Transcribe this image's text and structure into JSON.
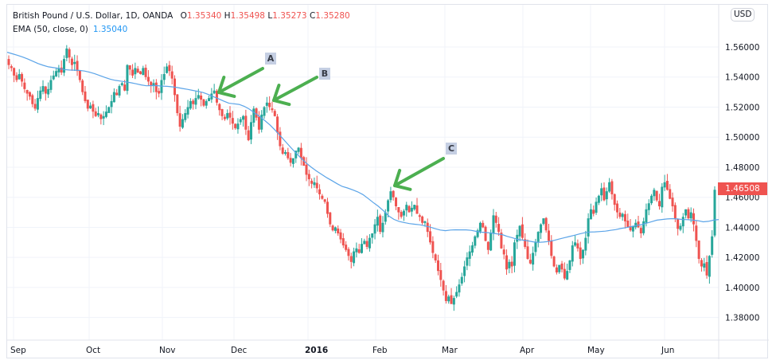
{
  "header": {
    "symbol": "British Pound / U.S. Dollar, 1D, OANDA",
    "open_label": "O",
    "open": "1.35340",
    "high_label": "H",
    "high": "1.35498",
    "low_label": "L",
    "low": "1.35273",
    "close_label": "C",
    "close": "1.35280",
    "indicator": "EMA (50, close, 0)",
    "indicator_value": "1.35040"
  },
  "price_axis": {
    "currency_badge": "USD",
    "ticks": [
      "1.56000",
      "1.54000",
      "1.52000",
      "1.50000",
      "1.48000",
      "1.46000",
      "1.44000",
      "1.42000",
      "1.40000",
      "1.38000"
    ],
    "last_price": "1.46508"
  },
  "time_axis": {
    "labels": [
      "Sep",
      "Oct",
      "Nov",
      "Dec",
      "2016",
      "Feb",
      "Mar",
      "Apr",
      "May",
      "Jun"
    ]
  },
  "annotations": [
    {
      "label": "A"
    },
    {
      "label": "B"
    },
    {
      "label": "C"
    }
  ],
  "colors": {
    "up": "#26a69a",
    "down": "#ef5350",
    "ema": "#5ba4e8",
    "arrow": "#4caf50",
    "grid": "#f0f3fa",
    "label_bg": "#c5cfe3"
  },
  "chart_data": {
    "type": "candlestick",
    "title": "British Pound / U.S. Dollar, 1D, OANDA",
    "xlabel": "",
    "ylabel": "USD",
    "ylim": [
      1.37,
      1.575
    ],
    "yticks": [
      1.56,
      1.54,
      1.52,
      1.5,
      1.48,
      1.46,
      1.44,
      1.42,
      1.4,
      1.38
    ],
    "xticks": [
      "Sep",
      "Oct",
      "Nov",
      "Dec",
      "2016",
      "Feb",
      "Mar",
      "Apr",
      "May",
      "Jun"
    ],
    "grid": true,
    "last_price": 1.46508,
    "path_closes": [
      1.548,
      1.546,
      1.541,
      1.538,
      1.542,
      1.537,
      1.532,
      1.529,
      1.527,
      1.522,
      1.519,
      1.526,
      1.531,
      1.534,
      1.529,
      1.532,
      1.538,
      1.541,
      1.544,
      1.546,
      1.543,
      1.552,
      1.559,
      1.553,
      1.548,
      1.55,
      1.544,
      1.538,
      1.53,
      1.524,
      1.519,
      1.521,
      1.517,
      1.514,
      1.516,
      1.512,
      1.514,
      1.517,
      1.52,
      1.524,
      1.53,
      1.528,
      1.534,
      1.536,
      1.531,
      1.548,
      1.545,
      1.541,
      1.546,
      1.543,
      1.542,
      1.546,
      1.54,
      1.537,
      1.534,
      1.536,
      1.53,
      1.529,
      1.538,
      1.542,
      1.547,
      1.544,
      1.539,
      1.528,
      1.516,
      1.507,
      1.512,
      1.516,
      1.52,
      1.524,
      1.522,
      1.526,
      1.528,
      1.525,
      1.521,
      1.524,
      1.526,
      1.529,
      1.531,
      1.523,
      1.518,
      1.514,
      1.512,
      1.516,
      1.513,
      1.509,
      1.506,
      1.509,
      1.512,
      1.514,
      1.505,
      1.498,
      1.51,
      1.519,
      1.513,
      1.505,
      1.515,
      1.52,
      1.523,
      1.52,
      1.518,
      1.514,
      1.503,
      1.494,
      1.489,
      1.49,
      1.486,
      1.483,
      1.486,
      1.491,
      1.493,
      1.486,
      1.481,
      1.475,
      1.472,
      1.469,
      1.47,
      1.466,
      1.462,
      1.459,
      1.457,
      1.449,
      1.442,
      1.438,
      1.44,
      1.436,
      1.432,
      1.428,
      1.425,
      1.421,
      1.417,
      1.424,
      1.426,
      1.423,
      1.429,
      1.431,
      1.427,
      1.433,
      1.436,
      1.442,
      1.447,
      1.437,
      1.443,
      1.45,
      1.458,
      1.464,
      1.46,
      1.454,
      1.45,
      1.447,
      1.451,
      1.455,
      1.45,
      1.453,
      1.455,
      1.449,
      1.447,
      1.443,
      1.444,
      1.437,
      1.43,
      1.423,
      1.418,
      1.411,
      1.405,
      1.398,
      1.391,
      1.394,
      1.389,
      1.393,
      1.397,
      1.402,
      1.407,
      1.414,
      1.42,
      1.424,
      1.428,
      1.434,
      1.438,
      1.443,
      1.44,
      1.431,
      1.425,
      1.436,
      1.448,
      1.443,
      1.437,
      1.426,
      1.422,
      1.412,
      1.417,
      1.414,
      1.43,
      1.435,
      1.441,
      1.433,
      1.427,
      1.419,
      1.416,
      1.423,
      1.43,
      1.437,
      1.442,
      1.446,
      1.438,
      1.431,
      1.421,
      1.414,
      1.41,
      1.415,
      1.412,
      1.406,
      1.411,
      1.418,
      1.428,
      1.43,
      1.426,
      1.419,
      1.425,
      1.433,
      1.446,
      1.452,
      1.449,
      1.457,
      1.461,
      1.466,
      1.458,
      1.464,
      1.47,
      1.462,
      1.455,
      1.45,
      1.447,
      1.449,
      1.444,
      1.44,
      1.438,
      1.441,
      1.443,
      1.44,
      1.436,
      1.444,
      1.452,
      1.456,
      1.461,
      1.465,
      1.458,
      1.454,
      1.467,
      1.47,
      1.465,
      1.459,
      1.454,
      1.446,
      1.439,
      1.441,
      1.447,
      1.452,
      1.446,
      1.45,
      1.442,
      1.431,
      1.419,
      1.414,
      1.416,
      1.408,
      1.421,
      1.434,
      1.465
    ],
    "ema_50": [
      1.5565,
      1.5555,
      1.5545,
      1.5533,
      1.552,
      1.5505,
      1.549,
      1.5478,
      1.5468,
      1.5463,
      1.5458,
      1.545,
      1.5447,
      1.5446,
      1.5444,
      1.544,
      1.5432,
      1.5422,
      1.541,
      1.5397,
      1.5386,
      1.5378,
      1.5373,
      1.5368,
      1.5362,
      1.5355,
      1.5348,
      1.5342,
      1.5343,
      1.5343,
      1.534,
      1.5338,
      1.5335,
      1.533,
      1.5324,
      1.5318,
      1.5311,
      1.5305,
      1.5297,
      1.5284,
      1.527,
      1.5255,
      1.524,
      1.5226,
      1.5222,
      1.5218,
      1.5205,
      1.5186,
      1.5162,
      1.5137,
      1.511,
      1.508,
      1.5045,
      1.5008,
      1.497,
      1.4932,
      1.4895,
      1.486,
      1.4828,
      1.48,
      1.4775,
      1.4752,
      1.473,
      1.4711,
      1.469,
      1.4672,
      1.4662,
      1.465,
      1.4636,
      1.4618,
      1.4592,
      1.4565,
      1.454,
      1.451,
      1.4476,
      1.4453,
      1.444,
      1.4432,
      1.4425,
      1.4421,
      1.4417,
      1.441,
      1.4402,
      1.4391,
      1.4382,
      1.4378,
      1.4382,
      1.4384,
      1.4383,
      1.4383,
      1.438,
      1.4373,
      1.4368,
      1.4365,
      1.4362,
      1.4357,
      1.4352,
      1.434,
      1.433,
      1.432,
      1.4315,
      1.431,
      1.4304,
      1.43,
      1.4302,
      1.4306,
      1.4313,
      1.4322,
      1.433,
      1.4339,
      1.4347,
      1.4356,
      1.4364,
      1.4369,
      1.437,
      1.4372,
      1.4375,
      1.438,
      1.4385,
      1.4392,
      1.4398,
      1.4405,
      1.4412,
      1.4418,
      1.4428,
      1.4438,
      1.4448,
      1.4452,
      1.4456,
      1.4458,
      1.4456,
      1.4452,
      1.4451,
      1.4448,
      1.4444,
      1.4437,
      1.444,
      1.4448,
      1.4452
    ]
  }
}
